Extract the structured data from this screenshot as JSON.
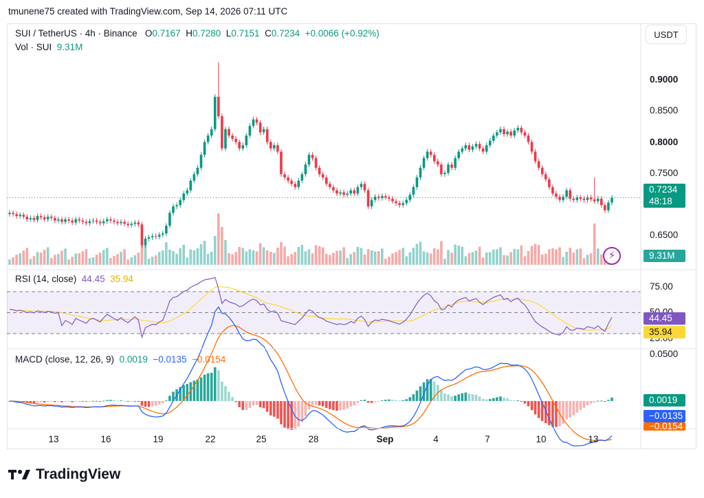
{
  "header": {
    "attribution": "tmunene75 created with TradingView.com, Sep 14, 2026 07:11 UTC"
  },
  "symbol": {
    "title": "SUI / TetherUS · 4h · Binance",
    "open_label": "O",
    "open": "0.7167",
    "high_label": "H",
    "high": "0.7280",
    "low_label": "L",
    "low": "0.7151",
    "close_label": "C",
    "close": "0.7234",
    "change": "+0.0066 (+0.92%)",
    "currency_button": "USDT"
  },
  "volume": {
    "label": "Vol · SUI",
    "value": "9.31M"
  },
  "price_axis": {
    "ticks": [
      "0.9000",
      "0.8500",
      "0.8000",
      "0.7500",
      "0.6500"
    ],
    "current_price": "0.7234",
    "countdown": "48:18",
    "volume_tag": "9.31M"
  },
  "rsi": {
    "label": "RSI (14, close)",
    "rsi_value": "44.45",
    "ma_value": "35.94",
    "ticks": [
      "75.00",
      "50.00",
      "25.00"
    ]
  },
  "macd": {
    "label": "MACD (close, 12, 26, 9)",
    "hist_value": "0.0019",
    "macd_value": "−0.0135",
    "signal_value": "−0.0154",
    "ticks": [
      "0.0500"
    ]
  },
  "time_axis": [
    "13",
    "16",
    "19",
    "22",
    "25",
    "28",
    "Sep",
    "4",
    "7",
    "10",
    "13"
  ],
  "brand": "TradingView",
  "colors": {
    "up": "#089981",
    "down": "#f23645",
    "rsi": "#7e57c2",
    "rsi_ma": "#fdd835",
    "macd": "#2962ff",
    "signal": "#ff6d00",
    "hist_up": "#26a69a",
    "hist_down": "#ef5350"
  },
  "chart_data": {
    "type": "candlestick",
    "interval": "4h",
    "ylim": [
      0.63,
      0.945
    ],
    "closes": [
      0.7,
      0.698,
      0.695,
      0.697,
      0.694,
      0.69,
      0.692,
      0.689,
      0.695,
      0.693,
      0.69,
      0.694,
      0.692,
      0.688,
      0.69,
      0.686,
      0.69,
      0.688,
      0.685,
      0.69,
      0.688,
      0.686,
      0.684,
      0.687,
      0.688,
      0.686,
      0.684,
      0.687,
      0.69,
      0.688,
      0.686,
      0.684,
      0.686,
      0.683,
      0.681,
      0.683,
      0.685,
      0.682,
      0.65,
      0.66,
      0.662,
      0.664,
      0.663,
      0.666,
      0.668,
      0.68,
      0.7,
      0.71,
      0.712,
      0.72,
      0.73,
      0.735,
      0.75,
      0.76,
      0.77,
      0.79,
      0.81,
      0.82,
      0.83,
      0.88,
      0.85,
      0.8,
      0.83,
      0.82,
      0.815,
      0.81,
      0.8,
      0.805,
      0.82,
      0.835,
      0.845,
      0.84,
      0.825,
      0.83,
      0.81,
      0.8,
      0.805,
      0.795,
      0.76,
      0.755,
      0.75,
      0.745,
      0.74,
      0.75,
      0.76,
      0.775,
      0.79,
      0.785,
      0.77,
      0.76,
      0.755,
      0.745,
      0.74,
      0.735,
      0.73,
      0.732,
      0.728,
      0.73,
      0.735,
      0.73,
      0.74,
      0.745,
      0.735,
      0.71,
      0.72,
      0.725,
      0.723,
      0.726,
      0.724,
      0.722,
      0.718,
      0.715,
      0.712,
      0.715,
      0.72,
      0.728,
      0.74,
      0.755,
      0.77,
      0.785,
      0.795,
      0.79,
      0.78,
      0.775,
      0.76,
      0.762,
      0.775,
      0.77,
      0.785,
      0.795,
      0.8,
      0.805,
      0.798,
      0.803,
      0.807,
      0.8,
      0.795,
      0.805,
      0.812,
      0.82,
      0.825,
      0.83,
      0.822,
      0.826,
      0.82,
      0.828,
      0.832,
      0.825,
      0.82,
      0.81,
      0.795,
      0.78,
      0.77,
      0.76,
      0.752,
      0.74,
      0.73,
      0.725,
      0.72,
      0.725,
      0.735,
      0.722,
      0.72,
      0.724,
      0.722,
      0.72,
      0.724,
      0.721,
      0.718,
      0.722,
      0.712,
      0.704,
      0.716,
      0.7234
    ],
    "volume_unit": "SUI",
    "last_volume": "9.31M",
    "rsi": {
      "period": 14,
      "last": 44.45,
      "ma_last": 35.94,
      "levels": [
        75,
        50,
        25
      ]
    },
    "macd": {
      "fast": 12,
      "slow": 26,
      "signal": 9,
      "hist_last": 0.0019,
      "macd_last": -0.0135,
      "signal_last": -0.0154
    }
  }
}
